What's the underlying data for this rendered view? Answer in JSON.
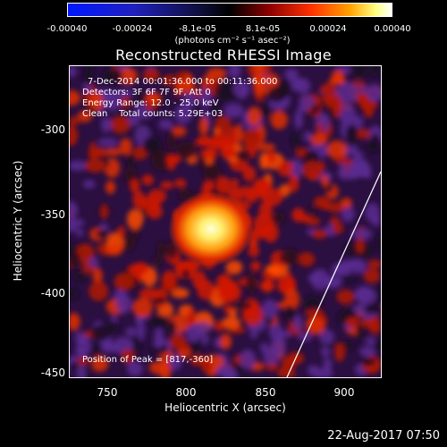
{
  "colorbar": {
    "ticks": [
      "-0.00040",
      "-0.00024",
      "-8.1e-05",
      "8.1e-05",
      "0.00024",
      "0.00040"
    ],
    "units": "(photons cm⁻² s⁻¹ asec⁻²)"
  },
  "title": "Reconstructed RHESSI Image",
  "annotations": {
    "line1": "7-Dec-2014 00:01:36.000 to 00:11:36.000",
    "line2": "Detectors: 3F 6F 7F 9F, Att 0",
    "line3": "Energy Range: 12.0 - 25.0 keV",
    "line4": "Clean    Total counts: 5.29E+03",
    "peak": "Position of Peak = [817,-360]"
  },
  "axes": {
    "xlabel": "Heliocentric X (arcsec)",
    "ylabel": "Heliocentric Y (arcsec)",
    "xticks": [
      "750",
      "800",
      "850",
      "900"
    ],
    "yticks": [
      "-300",
      "-350",
      "-400",
      "-450"
    ]
  },
  "timestamp": "22-Aug-2017 07:50"
}
